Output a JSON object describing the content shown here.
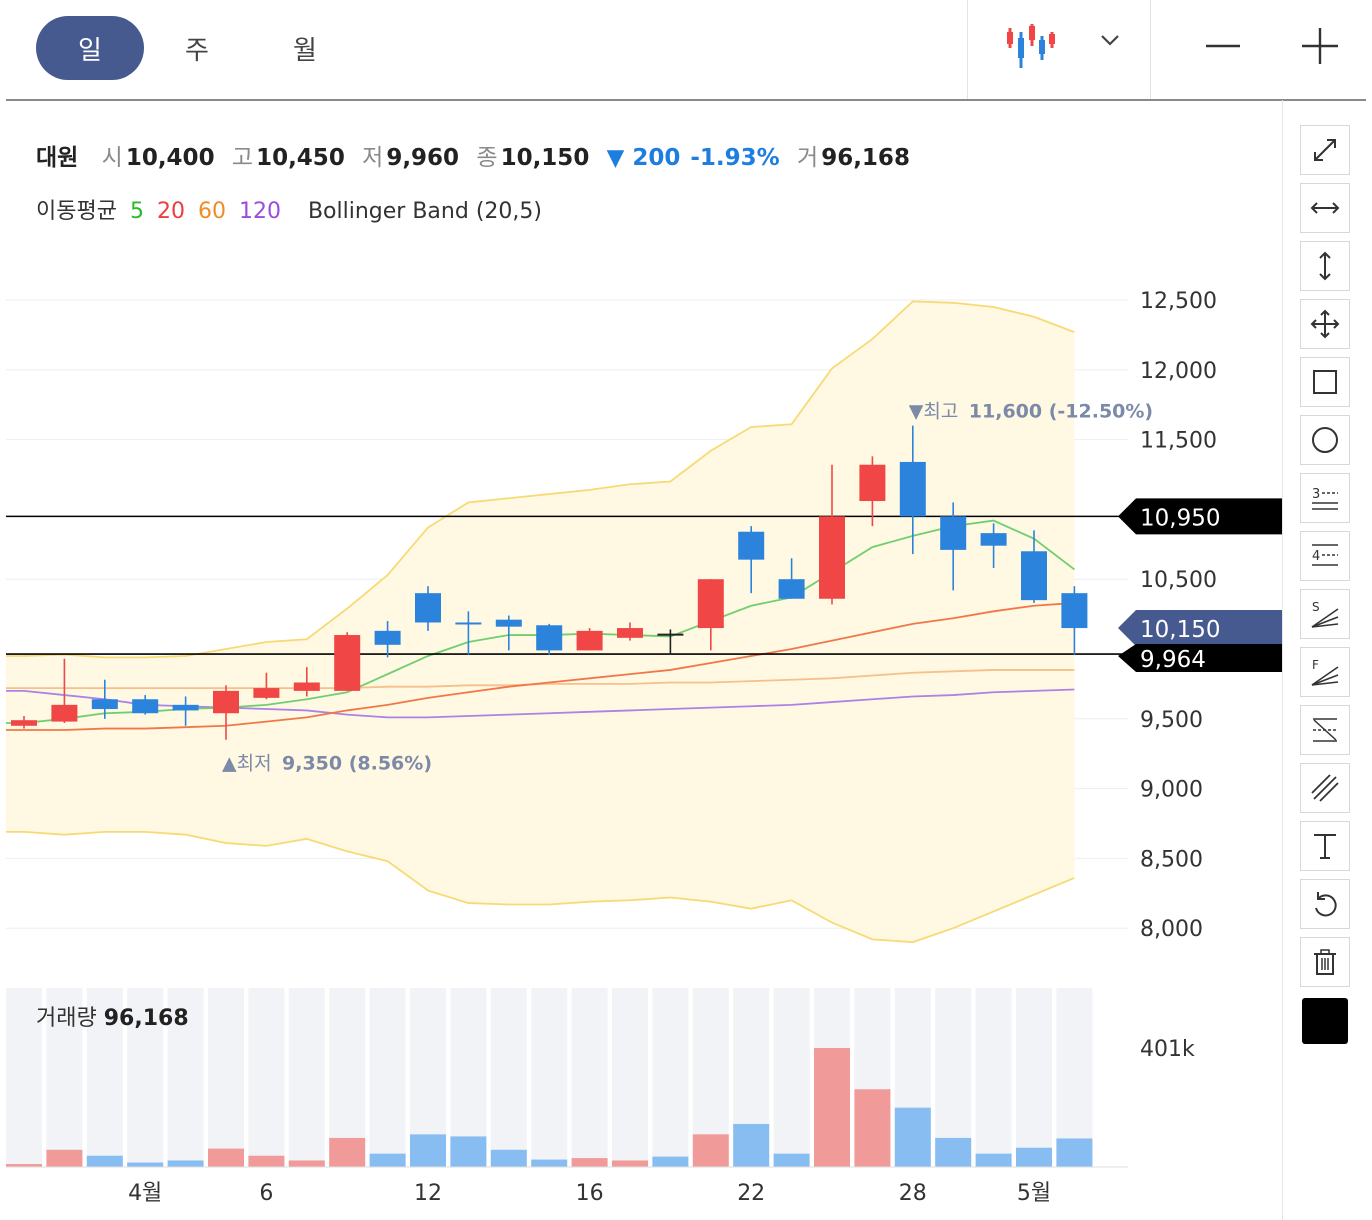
{
  "period_tabs": [
    {
      "label": "일",
      "active": true
    },
    {
      "label": "주",
      "active": false
    },
    {
      "label": "월",
      "active": false
    }
  ],
  "topbar_icons": [
    "candlestick-chart-icon",
    "chevron-down-icon",
    "zoom-out-icon",
    "zoom-in-icon"
  ],
  "info": {
    "name": "대원",
    "open_label": "시",
    "open": "10,400",
    "high_label": "고",
    "high": "10,450",
    "low_label": "저",
    "low": "9,960",
    "close_label": "종",
    "close": "10,150",
    "change": "▼ 200",
    "change_pct": "-1.93%",
    "volume_label": "거",
    "volume": "96,168"
  },
  "indicators": {
    "ma_label": "이동평균",
    "ma_periods": [
      {
        "period": "5",
        "color": "#2eb82e"
      },
      {
        "period": "20",
        "color": "#f03c3c"
      },
      {
        "period": "60",
        "color": "#f08c28"
      },
      {
        "period": "120",
        "color": "#9b4be0"
      }
    ],
    "bollinger_label": "Bollinger Band (20,5)"
  },
  "colors": {
    "up": "#f04646",
    "down": "#2b83dc",
    "band_fill": "#fff8e3",
    "band_line": "#f7da74",
    "ma5": "#6fcf6f",
    "ma20": "#f07848",
    "ma60": "#f5c08a",
    "ma120": "#ab82e6",
    "price_tag": "#475a8f",
    "line_tag": "#000000"
  },
  "chart_data": {
    "type": "candlestick",
    "y_ticks": [
      "12,500",
      "12,000",
      "11,500",
      "10,500",
      "9,500",
      "9,000",
      "8,500",
      "8,000"
    ],
    "y_tick_values": [
      12500,
      12000,
      11500,
      10500,
      9500,
      9000,
      8500,
      8000
    ],
    "x_tick_labels": [
      {
        "label": "4월",
        "index": 3
      },
      {
        "label": "6",
        "index": 6
      },
      {
        "label": "12",
        "index": 10
      },
      {
        "label": "16",
        "index": 14
      },
      {
        "label": "22",
        "index": 18
      },
      {
        "label": "28",
        "index": 22
      },
      {
        "label": "5월",
        "index": 25
      }
    ],
    "candles": [
      {
        "o": 9450,
        "h": 9520,
        "l": 9430,
        "c": 9490
      },
      {
        "o": 9480,
        "h": 9930,
        "l": 9470,
        "c": 9600
      },
      {
        "o": 9640,
        "h": 9780,
        "l": 9500,
        "c": 9570
      },
      {
        "o": 9640,
        "h": 9670,
        "l": 9530,
        "c": 9540
      },
      {
        "o": 9600,
        "h": 9660,
        "l": 9450,
        "c": 9560
      },
      {
        "o": 9540,
        "h": 9740,
        "l": 9350,
        "c": 9700
      },
      {
        "o": 9650,
        "h": 9830,
        "l": 9640,
        "c": 9720
      },
      {
        "o": 9700,
        "h": 9870,
        "l": 9660,
        "c": 9760
      },
      {
        "o": 9700,
        "h": 10120,
        "l": 9700,
        "c": 10100
      },
      {
        "o": 10130,
        "h": 10200,
        "l": 9940,
        "c": 10030
      },
      {
        "o": 10400,
        "h": 10450,
        "l": 10130,
        "c": 10190
      },
      {
        "o": 10190,
        "h": 10270,
        "l": 9960,
        "c": 10180
      },
      {
        "o": 10210,
        "h": 10240,
        "l": 9990,
        "c": 10160
      },
      {
        "o": 10170,
        "h": 10180,
        "l": 9960,
        "c": 9990
      },
      {
        "o": 9990,
        "h": 10150,
        "l": 9990,
        "c": 10130
      },
      {
        "o": 10080,
        "h": 10190,
        "l": 10060,
        "c": 10150
      },
      {
        "o": 10110,
        "h": 10140,
        "l": 9960,
        "c": 10110
      },
      {
        "o": 10150,
        "h": 10500,
        "l": 9990,
        "c": 10500
      },
      {
        "o": 10840,
        "h": 10880,
        "l": 10400,
        "c": 10640
      },
      {
        "o": 10500,
        "h": 10650,
        "l": 10360,
        "c": 10360
      },
      {
        "o": 10360,
        "h": 11320,
        "l": 10320,
        "c": 10950
      },
      {
        "o": 11060,
        "h": 11380,
        "l": 10880,
        "c": 11320
      },
      {
        "o": 11340,
        "h": 11600,
        "l": 10680,
        "c": 10950
      },
      {
        "o": 10950,
        "h": 11050,
        "l": 10420,
        "c": 10710
      },
      {
        "o": 10830,
        "h": 10900,
        "l": 10580,
        "c": 10740
      },
      {
        "o": 10700,
        "h": 10850,
        "l": 10330,
        "c": 10350
      },
      {
        "o": 10400,
        "h": 10450,
        "l": 9960,
        "c": 10150
      }
    ],
    "bollinger_upper": [
      9950,
      9960,
      9940,
      9940,
      9950,
      10000,
      10050,
      10070,
      10290,
      10530,
      10870,
      11050,
      11080,
      11110,
      11140,
      11180,
      11200,
      11420,
      11590,
      11610,
      12010,
      12220,
      12490,
      12480,
      12450,
      12380,
      12270
    ],
    "bollinger_lower": [
      8690,
      8670,
      8690,
      8690,
      8670,
      8610,
      8590,
      8640,
      8550,
      8480,
      8270,
      8180,
      8170,
      8170,
      8190,
      8200,
      8220,
      8190,
      8140,
      8200,
      8040,
      7920,
      7900,
      8000,
      8120,
      8240,
      8360
    ],
    "ma5": [
      9470,
      9500,
      9540,
      9550,
      9570,
      9580,
      9600,
      9640,
      9690,
      9820,
      9950,
      10050,
      10100,
      10100,
      10110,
      10100,
      10090,
      10200,
      10310,
      10370,
      10550,
      10730,
      10810,
      10880,
      10920,
      10790,
      10570
    ],
    "ma20": [
      9420,
      9420,
      9430,
      9430,
      9440,
      9450,
      9480,
      9510,
      9560,
      9600,
      9650,
      9690,
      9730,
      9760,
      9790,
      9820,
      9850,
      9900,
      9950,
      10000,
      10060,
      10120,
      10180,
      10220,
      10270,
      10310,
      10330
    ],
    "ma60": [
      9720,
      9720,
      9720,
      9720,
      9720,
      9720,
      9720,
      9720,
      9720,
      9730,
      9730,
      9740,
      9740,
      9750,
      9750,
      9750,
      9760,
      9760,
      9770,
      9780,
      9790,
      9810,
      9830,
      9840,
      9850,
      9850,
      9850
    ],
    "ma120": [
      9700,
      9670,
      9640,
      9600,
      9590,
      9580,
      9570,
      9560,
      9530,
      9510,
      9510,
      9520,
      9530,
      9540,
      9550,
      9560,
      9570,
      9580,
      9590,
      9600,
      9620,
      9640,
      9660,
      9670,
      9690,
      9700,
      9710
    ],
    "horizontal_lines": [
      {
        "value": 10950,
        "label": "10,950"
      },
      {
        "value": 9964,
        "label": "9,964"
      }
    ],
    "current_price": {
      "value": 10150,
      "label": "10,150"
    },
    "annotations": [
      {
        "text": "▼최고",
        "value_text": "11,600 (-12.50%)",
        "index": 22,
        "price": 11600
      },
      {
        "text": "▲최저",
        "value_text": "9,350 (8.56%)",
        "index": 5,
        "price": 9350
      }
    ],
    "volume": {
      "title": "거래량",
      "latest": "96,168",
      "axis_label": "401k",
      "axis_value": 401000,
      "values": [
        10000,
        58000,
        38000,
        15000,
        22000,
        62000,
        38000,
        22000,
        98000,
        45000,
        110000,
        103000,
        58000,
        25000,
        30000,
        22000,
        35000,
        110000,
        145000,
        45000,
        401000,
        262000,
        200000,
        98000,
        45000,
        65000,
        96168
      ]
    }
  },
  "tools": [
    "diagonal-line-tool-icon",
    "horizontal-ray-tool-icon",
    "vertical-line-tool-icon",
    "move-tool-icon",
    "rectangle-tool-icon",
    "circle-tool-icon",
    "fib-3-tool-icon",
    "fib-4-tool-icon",
    "speed-fan-tool-icon",
    "fib-fan-tool-icon",
    "trend-channel-tool-icon",
    "parallel-lines-tool-icon",
    "text-tool-icon",
    "undo-icon",
    "trash-icon",
    "color-picker"
  ]
}
